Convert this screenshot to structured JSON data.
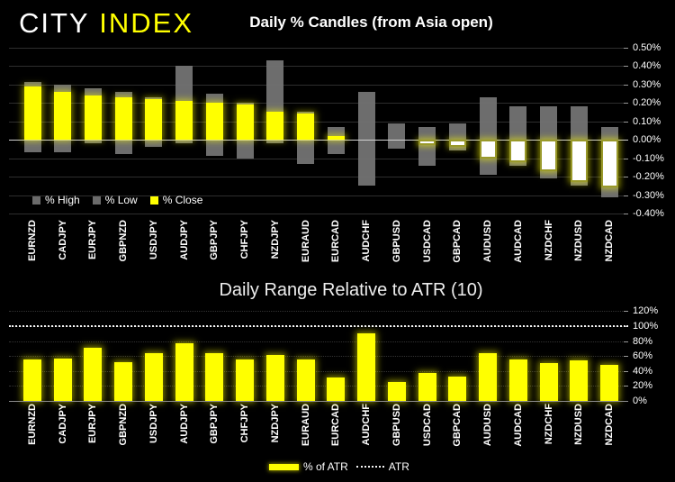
{
  "logo": {
    "part1": "CITY",
    "part2": "INDEX"
  },
  "colors": {
    "background": "#000000",
    "accent_yellow": "#ffff00",
    "range_bar_gray": "#747474",
    "close_negative_fill": "#ffffff",
    "zero_line": "#d0d0d0",
    "atr_line": "#f5f5f5"
  },
  "chart_data": [
    {
      "id": "daily-pct-candles",
      "type": "bar",
      "title": "Daily % Candles (from Asia open)",
      "categories": [
        "EURNZD",
        "CADJPY",
        "EURJPY",
        "GBPNZD",
        "USDJPY",
        "AUDJPY",
        "GBPJPY",
        "CHFJPY",
        "NZDJPY",
        "EURAUD",
        "EURCAD",
        "AUDCHF",
        "GBPUSD",
        "USDCAD",
        "GBPCAD",
        "AUDUSD",
        "AUDCAD",
        "NZDCHF",
        "NZDUSD",
        "NZDCAD"
      ],
      "series": [
        {
          "name": "% High",
          "color": "#6b6b6b",
          "values": [
            0.31,
            0.3,
            0.28,
            0.26,
            0.23,
            0.4,
            0.25,
            0.2,
            0.43,
            0.15,
            0.07,
            0.26,
            0.09,
            0.07,
            0.09,
            0.23,
            0.18,
            0.18,
            0.18,
            0.07
          ]
        },
        {
          "name": "% Low",
          "color": "#6b6b6b",
          "values": [
            -0.07,
            -0.07,
            -0.02,
            -0.08,
            -0.04,
            -0.02,
            -0.09,
            -0.1,
            -0.02,
            -0.13,
            -0.08,
            -0.25,
            -0.05,
            -0.14,
            -0.06,
            -0.19,
            -0.14,
            -0.21,
            -0.25,
            -0.31
          ]
        },
        {
          "name": "% Close",
          "color": "#ffff00",
          "values": [
            0.29,
            0.26,
            0.24,
            0.23,
            0.22,
            0.21,
            0.2,
            0.19,
            0.15,
            0.14,
            0.02,
            0.0,
            0.0,
            -0.03,
            -0.04,
            -0.1,
            -0.12,
            -0.17,
            -0.23,
            -0.26
          ]
        }
      ],
      "ylim": [
        -0.4,
        0.5
      ],
      "y_tick_step": 0.1,
      "y_tick_decimals": 2,
      "y_tick_suffix": "%",
      "axis_side": "right",
      "grid": true,
      "legend_position": "bottom-left"
    },
    {
      "id": "daily-range-atr",
      "type": "bar",
      "title": "Daily Range Relative to ATR (10)",
      "categories": [
        "EURNZD",
        "CADJPY",
        "EURJPY",
        "GBPNZD",
        "USDJPY",
        "AUDJPY",
        "GBPJPY",
        "CHFJPY",
        "NZDJPY",
        "EURAUD",
        "EURCAD",
        "AUDCHF",
        "GBPUSD",
        "USDCAD",
        "GBPCAD",
        "AUDUSD",
        "AUDCAD",
        "NZDCHF",
        "NZDUSD",
        "NZDCAD"
      ],
      "series": [
        {
          "name": "% of ATR",
          "color": "#ffff00",
          "values": [
            56,
            57,
            71,
            52,
            64,
            77,
            64,
            56,
            61,
            56,
            31,
            90,
            25,
            37,
            32,
            64,
            56,
            51,
            54,
            48
          ]
        }
      ],
      "reference_line": {
        "label": "ATR",
        "value": 100,
        "style": "dotted",
        "color": "#f5f5f5"
      },
      "ylim": [
        0,
        120
      ],
      "y_tick_step": 20,
      "y_tick_decimals": 0,
      "y_tick_suffix": "%",
      "axis_side": "right",
      "grid": true,
      "legend_position": "bottom-center"
    }
  ]
}
